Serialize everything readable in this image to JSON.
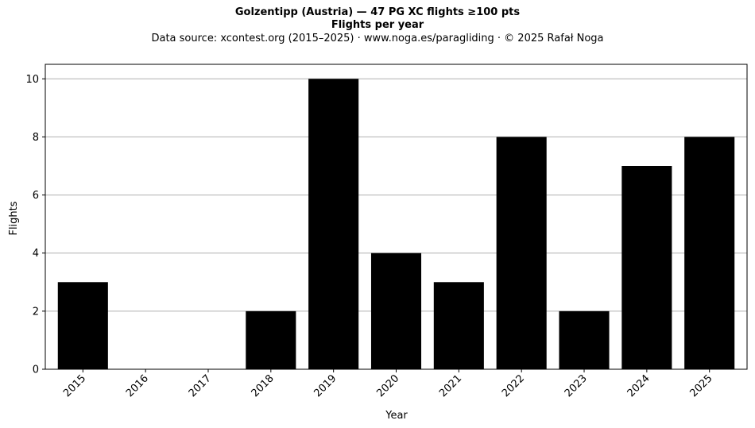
{
  "chart_data": {
    "type": "bar",
    "title": "Golzentipp (Austria)  —  47 PG XC flights ≥100 pts",
    "subtitle": "Flights per year",
    "source": "Data source: xcontest.org (2015–2025)  ·  www.noga.es/paragliding  ·  © 2025 Rafał Noga",
    "xlabel": "Year",
    "ylabel": "Flights",
    "categories": [
      "2015",
      "2016",
      "2017",
      "2018",
      "2019",
      "2020",
      "2021",
      "2022",
      "2023",
      "2024",
      "2025"
    ],
    "values": [
      3,
      0,
      0,
      2,
      10,
      4,
      3,
      8,
      2,
      7,
      8
    ],
    "ylim": [
      0,
      10.5
    ],
    "yticks": [
      0,
      2,
      4,
      6,
      8,
      10
    ],
    "grid": "horizontal",
    "bar_color": "#000000",
    "grid_color": "#b0b0b0"
  }
}
